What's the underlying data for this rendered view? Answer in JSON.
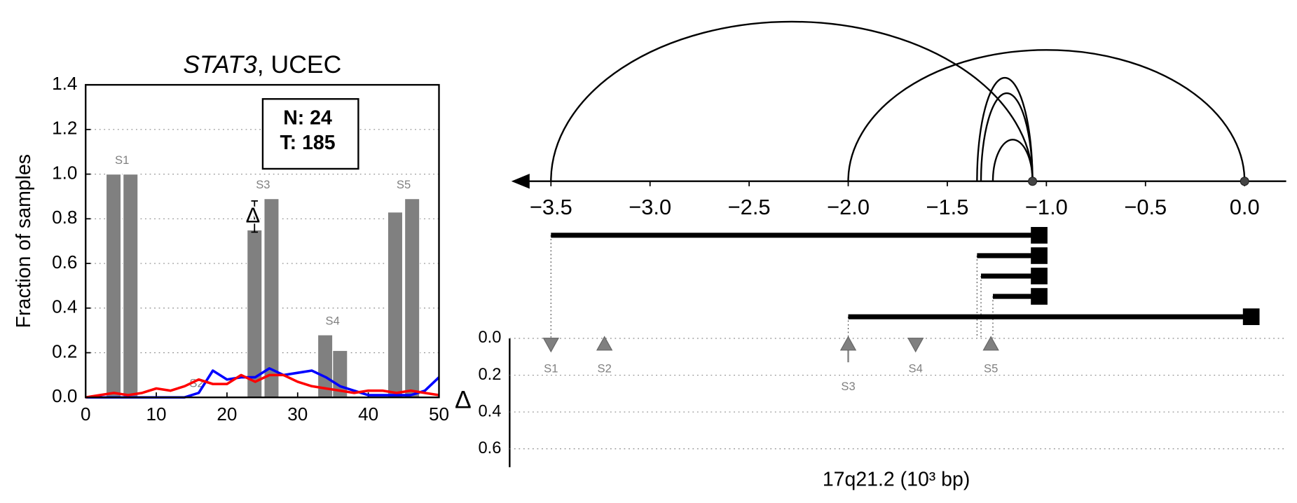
{
  "chart_data": [
    {
      "type": "bar",
      "title": [
        "STAT3",
        ", UCEC"
      ],
      "ylabel": "Fraction of samples",
      "xlim": [
        0,
        50
      ],
      "xticks": [
        0,
        10,
        20,
        30,
        40,
        50
      ],
      "ylim": [
        0,
        1.4
      ],
      "yticks": [
        {
          "value": 0,
          "label": "0.0"
        },
        {
          "value": 0.2,
          "label": "0.2"
        },
        {
          "value": 0.4,
          "label": "0.4"
        },
        {
          "value": 0.6,
          "label": "0.6"
        },
        {
          "value": 0.8,
          "label": "0.8"
        },
        {
          "value": 1.0,
          "label": "1.0"
        },
        {
          "value": 1.2,
          "label": "1.2"
        },
        {
          "value": 1.4,
          "label": "1.4"
        }
      ],
      "grid": true,
      "bar_color": "#808080",
      "groups": [
        {
          "label": "S1",
          "x": [
            3.95,
            6.35
          ],
          "values": [
            1.0,
            1.0
          ]
        },
        {
          "label": "S2",
          "x": [
            14.5,
            16.9
          ],
          "values": [
            0,
            0
          ]
        },
        {
          "label": "S3",
          "x": [
            23.9,
            26.3
          ],
          "values": [
            0.75,
            0.89
          ]
        },
        {
          "label": "S4",
          "x": [
            33.9,
            36.0
          ],
          "values": [
            0.28,
            0.21
          ]
        },
        {
          "label": "S5",
          "x": [
            43.8,
            46.2
          ],
          "values": [
            0.83,
            0.89
          ]
        }
      ],
      "delta": {
        "label": "Δ",
        "x": 23.9,
        "values": [
          0.74,
          0.88
        ]
      },
      "x": [
        0,
        2,
        4,
        6,
        8,
        10,
        12,
        14,
        16,
        18,
        20,
        22,
        24,
        26,
        28,
        30,
        32,
        34,
        36,
        38,
        40,
        42,
        44,
        46,
        48,
        50
      ],
      "series": [
        {
          "color": "#0000ff",
          "values": [
            0,
            0,
            0,
            0,
            0,
            0,
            0,
            0,
            0.02,
            0.12,
            0.08,
            0.09,
            0.09,
            0.13,
            0.1,
            0.11,
            0.12,
            0.09,
            0.05,
            0.03,
            0.01,
            0.01,
            0.01,
            0.01,
            0.03,
            0.09
          ]
        },
        {
          "color": "#ff0000",
          "values": [
            0,
            0.01,
            0.02,
            0.01,
            0.02,
            0.04,
            0.03,
            0.05,
            0.08,
            0.06,
            0.06,
            0.1,
            0.07,
            0.1,
            0.1,
            0.07,
            0.05,
            0.04,
            0.03,
            0.02,
            0.03,
            0.03,
            0.02,
            0.03,
            0.02,
            0.01
          ]
        }
      ],
      "annotation": [
        "N: 24",
        "T: 185"
      ]
    },
    {
      "type": "arc",
      "xlim": [
        -3.7,
        0.21
      ],
      "xticks": [
        {
          "value": -3.5,
          "label": "−3.5"
        },
        {
          "value": -3.0,
          "label": "−3.0"
        },
        {
          "value": -2.5,
          "label": "−2.5"
        },
        {
          "value": -2.0,
          "label": "−2.0"
        },
        {
          "value": -1.5,
          "label": "−1.5"
        },
        {
          "value": -1.0,
          "label": "−1.0"
        },
        {
          "value": -0.5,
          "label": "−0.5"
        },
        {
          "value": 0,
          "label": "0.0"
        }
      ],
      "arcs": {
        "start": [
          -3.5,
          -2.0,
          -1.35,
          -1.33,
          -1.27
        ],
        "end": [
          -1.07,
          0.0,
          -1.07,
          -1.07,
          -1.07
        ]
      },
      "points": [
        -1.07,
        0.0
      ],
      "intervals": {
        "start": [
          -3.5,
          -1.35,
          -1.33,
          -1.27,
          -2.0
        ],
        "end": [
          -1.07,
          -1.07,
          -1.07,
          -1.07,
          0.0
        ]
      }
    },
    {
      "type": "marker",
      "xlim": [
        -3.7,
        0.21
      ],
      "ylim": [
        0,
        0.7
      ],
      "yticks": [
        {
          "value": 0,
          "label": "0.0"
        },
        {
          "value": 0.2,
          "label": "0.2"
        },
        {
          "value": 0.4,
          "label": "0.4"
        },
        {
          "value": 0.6,
          "label": "0.6"
        }
      ],
      "grid": true,
      "ylabel": "Δ",
      "xlabel": "17q21.2 (10³ bp)",
      "color": "#808080",
      "labels": [
        "S1",
        "S2",
        "S3",
        "S4",
        "S5"
      ],
      "x": [
        -3.5,
        -3.23,
        -2.0,
        -1.66,
        -1.28
      ],
      "values": [
        0,
        0,
        0.13,
        0,
        0
      ],
      "direction": [
        "down",
        "up",
        "up",
        "down",
        "up"
      ]
    }
  ]
}
